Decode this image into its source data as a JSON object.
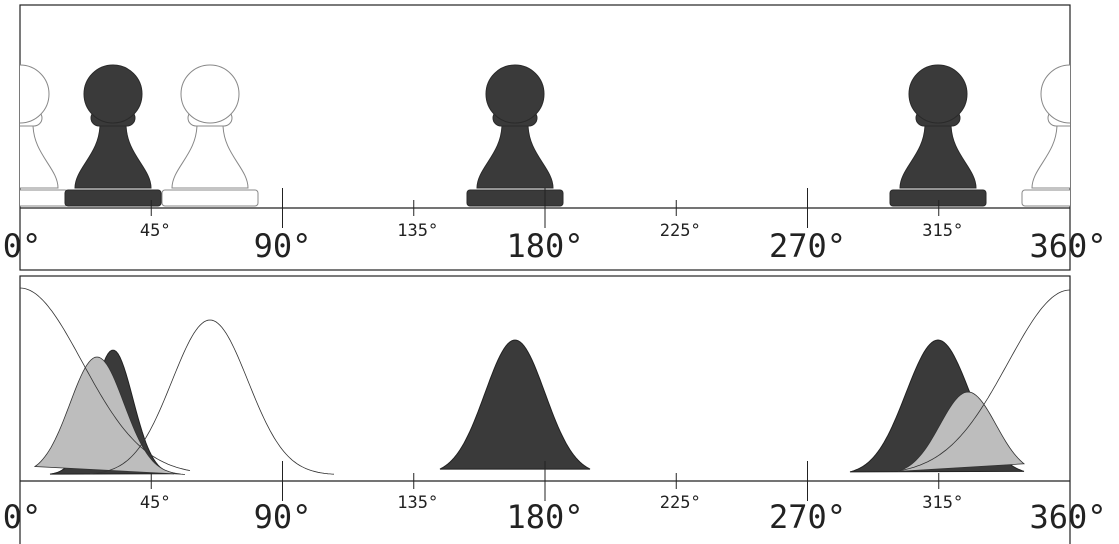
{
  "top_scale": {
    "ticks": [
      {
        "label": "0°",
        "major": true
      },
      {
        "label": "45°",
        "major": false
      },
      {
        "label": "90°",
        "major": true
      },
      {
        "label": "135°",
        "major": false
      },
      {
        "label": "180°",
        "major": true
      },
      {
        "label": "225°",
        "major": false
      },
      {
        "label": "270°",
        "major": true
      },
      {
        "label": "315°",
        "major": false
      },
      {
        "label": "360°",
        "major": true
      }
    ]
  },
  "bottom_scale": {
    "ticks": [
      {
        "label": "0°",
        "major": true
      },
      {
        "label": "45°",
        "major": false
      },
      {
        "label": "90°",
        "major": true
      },
      {
        "label": "135°",
        "major": false
      },
      {
        "label": "180°",
        "major": true
      },
      {
        "label": "225°",
        "major": false
      },
      {
        "label": "270°",
        "major": true
      },
      {
        "label": "315°",
        "major": false
      },
      {
        "label": "360°",
        "major": true
      }
    ]
  }
}
